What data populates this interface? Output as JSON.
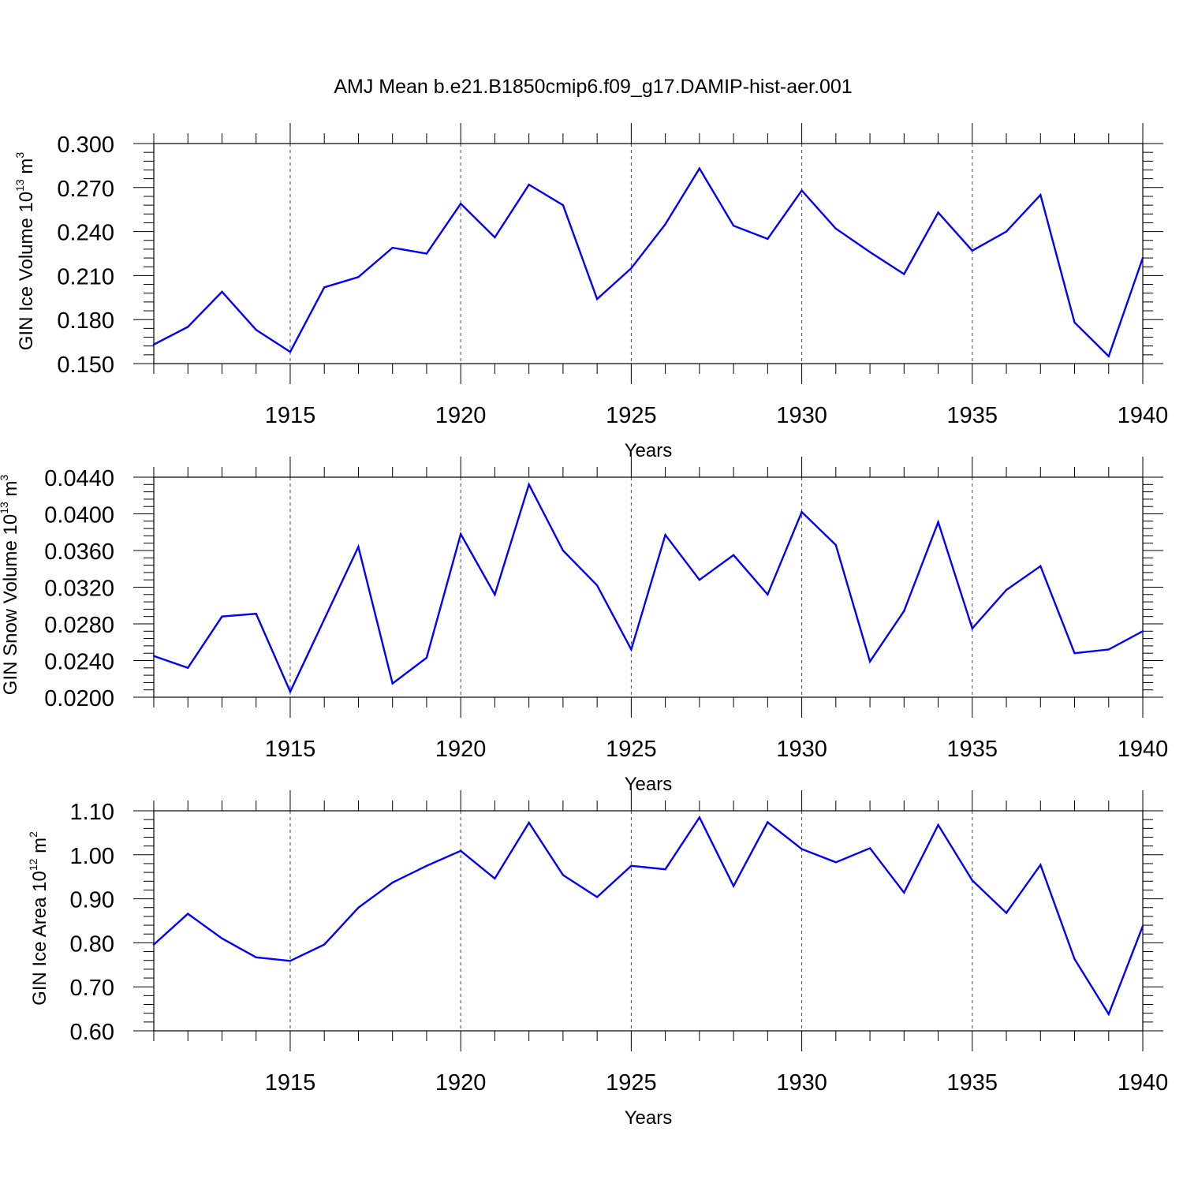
{
  "title": "AMJ Mean b.e21.B1850cmip6.f09_g17.DAMIP-hist-aer.001",
  "colors": {
    "line": "#0000ff",
    "axis": "#000000",
    "grid": "#000000"
  },
  "chart_data": [
    {
      "type": "line",
      "ylabel": {
        "text": "GIN Ice Volume 10",
        "exp": "13",
        "unit": " m",
        "unit_exp": "3"
      },
      "xlabel": "Years",
      "xlim": [
        1911,
        1940
      ],
      "ylim": [
        0.15,
        0.3
      ],
      "yticks": [
        0.15,
        0.18,
        0.21,
        0.24,
        0.27,
        0.3
      ],
      "ytick_labels": [
        "0.150",
        "0.180",
        "0.210",
        "0.240",
        "0.270",
        "0.300"
      ],
      "y_minor_step": 0.006,
      "xticks": [
        1915,
        1920,
        1925,
        1930,
        1935,
        1940
      ],
      "xtick_labels": [
        "1915",
        "1920",
        "1925",
        "1930",
        "1935",
        "1940"
      ],
      "grid_x": true,
      "x": [
        1911,
        1912,
        1913,
        1914,
        1915,
        1916,
        1917,
        1918,
        1919,
        1920,
        1921,
        1922,
        1923,
        1924,
        1925,
        1926,
        1927,
        1928,
        1929,
        1930,
        1931,
        1932,
        1933,
        1934,
        1935,
        1936,
        1937,
        1938,
        1939,
        1940
      ],
      "values": [
        0.163,
        0.175,
        0.199,
        0.173,
        0.158,
        0.202,
        0.209,
        0.229,
        0.225,
        0.259,
        0.236,
        0.272,
        0.258,
        0.194,
        0.215,
        0.245,
        0.283,
        0.244,
        0.235,
        0.268,
        0.242,
        0.226,
        0.211,
        0.253,
        0.227,
        0.24,
        0.265,
        0.178,
        0.155,
        0.222
      ]
    },
    {
      "type": "line",
      "ylabel": {
        "text": "GIN Snow Volume 10",
        "exp": "13",
        "unit": " m",
        "unit_exp": "3"
      },
      "xlabel": "Years",
      "xlim": [
        1911,
        1940
      ],
      "ylim": [
        0.02,
        0.044
      ],
      "yticks": [
        0.02,
        0.024,
        0.028,
        0.032,
        0.036,
        0.04,
        0.044
      ],
      "ytick_labels": [
        "0.0200",
        "0.0240",
        "0.0280",
        "0.0320",
        "0.0360",
        "0.0400",
        "0.0440"
      ],
      "y_minor_step": 0.0008,
      "xticks": [
        1915,
        1920,
        1925,
        1930,
        1935,
        1940
      ],
      "xtick_labels": [
        "1915",
        "1920",
        "1925",
        "1930",
        "1935",
        "1940"
      ],
      "grid_x": true,
      "x": [
        1911,
        1912,
        1913,
        1914,
        1915,
        1916,
        1917,
        1918,
        1919,
        1920,
        1921,
        1922,
        1923,
        1924,
        1925,
        1926,
        1927,
        1928,
        1929,
        1930,
        1931,
        1932,
        1933,
        1934,
        1935,
        1936,
        1937,
        1938,
        1939,
        1940
      ],
      "values": [
        0.0245,
        0.0232,
        0.0288,
        0.0291,
        0.0206,
        0.0285,
        0.0364,
        0.0215,
        0.0243,
        0.0378,
        0.0312,
        0.0432,
        0.036,
        0.0322,
        0.0252,
        0.0377,
        0.0328,
        0.0355,
        0.0312,
        0.0402,
        0.0366,
        0.0239,
        0.0294,
        0.0391,
        0.0275,
        0.0317,
        0.0343,
        0.0248,
        0.0252,
        0.0272
      ]
    },
    {
      "type": "line",
      "ylabel": {
        "text": "GIN Ice Area 10",
        "exp": "12",
        "unit": " m",
        "unit_exp": "2"
      },
      "xlabel": "Years",
      "xlim": [
        1911,
        1940
      ],
      "ylim": [
        0.6,
        1.1
      ],
      "yticks": [
        0.6,
        0.7,
        0.8,
        0.9,
        1.0,
        1.1
      ],
      "ytick_labels": [
        "0.60",
        "0.70",
        "0.80",
        "0.90",
        "1.00",
        "1.10"
      ],
      "y_minor_step": 0.02,
      "xticks": [
        1915,
        1920,
        1925,
        1930,
        1935,
        1940
      ],
      "xtick_labels": [
        "1915",
        "1920",
        "1925",
        "1930",
        "1935",
        "1940"
      ],
      "grid_x": true,
      "x": [
        1911,
        1912,
        1913,
        1914,
        1915,
        1916,
        1917,
        1918,
        1919,
        1920,
        1921,
        1922,
        1923,
        1924,
        1925,
        1926,
        1927,
        1928,
        1929,
        1930,
        1931,
        1932,
        1933,
        1934,
        1935,
        1936,
        1937,
        1938,
        1939,
        1940
      ],
      "values": [
        0.796,
        0.866,
        0.81,
        0.767,
        0.759,
        0.796,
        0.88,
        0.937,
        0.975,
        1.009,
        0.946,
        1.073,
        0.954,
        0.904,
        0.975,
        0.967,
        1.085,
        0.929,
        1.074,
        1.013,
        0.983,
        1.015,
        0.914,
        1.068,
        0.942,
        0.868,
        0.977,
        0.763,
        0.638,
        0.838
      ]
    }
  ]
}
